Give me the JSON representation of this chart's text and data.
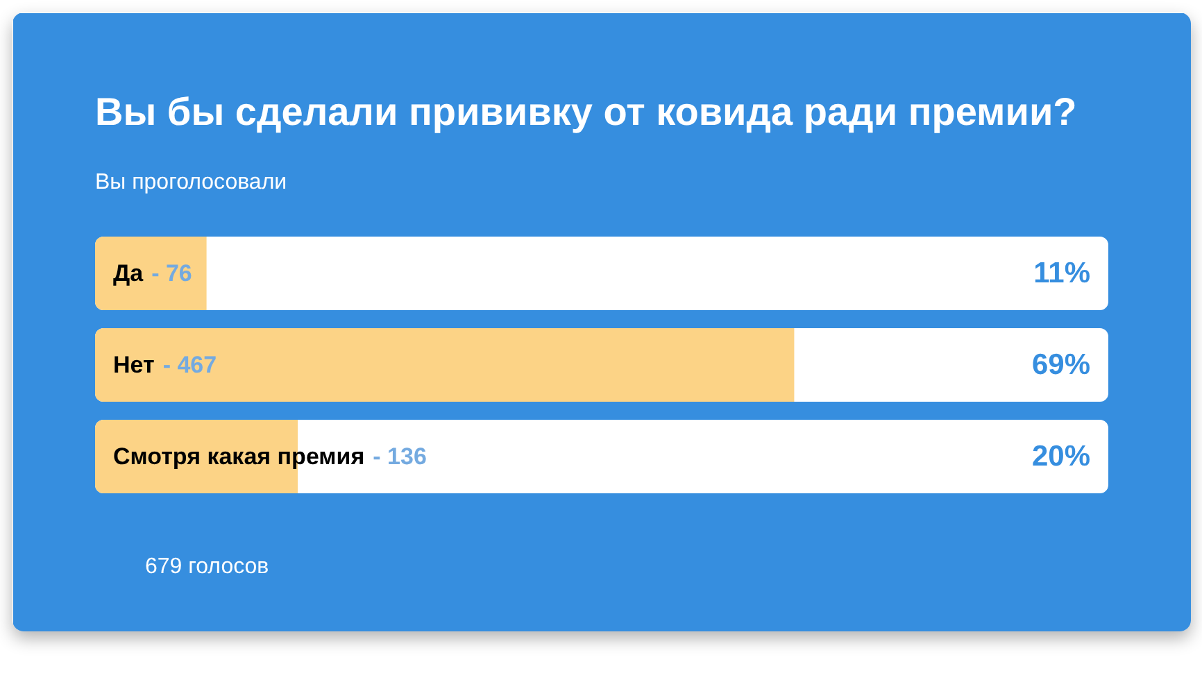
{
  "chart_data": {
    "type": "bar",
    "orientation": "horizontal",
    "title": "Вы бы сделали прививку от ковида ради премии?",
    "subtitle": "Вы проголосовали",
    "categories": [
      "Да",
      "Нет",
      "Смотря какая премия"
    ],
    "values": [
      11,
      69,
      20
    ],
    "value_labels": [
      "11%",
      "69%",
      "20%"
    ],
    "color": "#fcd386",
    "xlim": [
      0,
      100
    ],
    "tick_labels": false,
    "annotations": [
      "- 76",
      "- 467",
      "- 136",
      "679 голосов"
    ]
  }
}
